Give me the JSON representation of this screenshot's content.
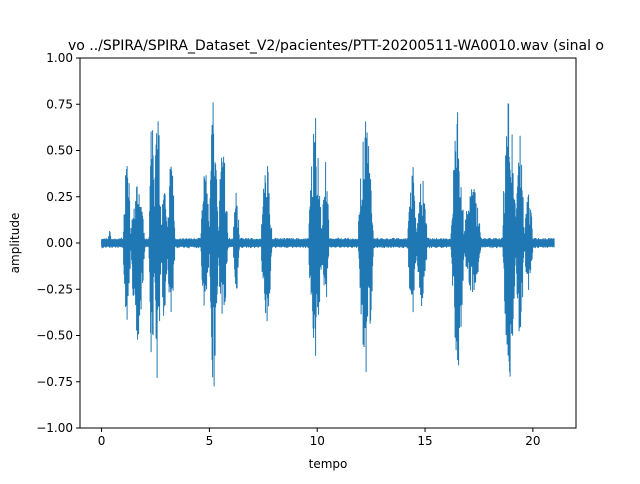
{
  "chart_data": {
    "type": "line",
    "title": "vo ../SPIRA/SPIRA_Dataset_V2/pacientes/PTT-20200511-WA0010.wav (sinal o",
    "xlabel": "tempo",
    "ylabel": "amplitude",
    "xlim": [
      -1.0,
      22.0
    ],
    "ylim": [
      -1.0,
      1.0
    ],
    "xticks": [
      0,
      5,
      10,
      15,
      20
    ],
    "xtick_labels": [
      "0",
      "5",
      "10",
      "15",
      "20"
    ],
    "yticks": [
      -1.0,
      -0.75,
      -0.5,
      -0.25,
      0.0,
      0.25,
      0.5,
      0.75,
      1.0
    ],
    "ytick_labels": [
      "−1.00",
      "−0.75",
      "−0.50",
      "−0.25",
      "0.00",
      "0.25",
      "0.50",
      "0.75",
      "1.00"
    ],
    "grid": false,
    "series": [
      {
        "color": "#1f77b4",
        "x_range": [
          0.0,
          21.0
        ],
        "noise_floor": 0.02,
        "bursts": [
          {
            "start": 0.3,
            "end": 0.45,
            "pos": 0.08,
            "neg": -0.04
          },
          {
            "start": 1.0,
            "end": 1.35,
            "pos": 0.55,
            "neg": -0.45
          },
          {
            "start": 1.35,
            "end": 2.0,
            "pos": 0.35,
            "neg": -0.55
          },
          {
            "start": 2.2,
            "end": 2.45,
            "pos": 0.88,
            "neg": -0.85
          },
          {
            "start": 2.45,
            "end": 2.75,
            "pos": 0.92,
            "neg": -0.9
          },
          {
            "start": 2.75,
            "end": 3.05,
            "pos": 0.45,
            "neg": -0.45
          },
          {
            "start": 3.05,
            "end": 3.4,
            "pos": 0.5,
            "neg": -0.48
          },
          {
            "start": 4.6,
            "end": 5.0,
            "pos": 0.45,
            "neg": -0.42
          },
          {
            "start": 5.0,
            "end": 5.4,
            "pos": 0.9,
            "neg": -0.94
          },
          {
            "start": 5.4,
            "end": 5.85,
            "pos": 0.62,
            "neg": -0.55
          },
          {
            "start": 6.1,
            "end": 6.4,
            "pos": 0.3,
            "neg": -0.3
          },
          {
            "start": 7.4,
            "end": 7.9,
            "pos": 0.5,
            "neg": -0.5
          },
          {
            "start": 9.6,
            "end": 10.2,
            "pos": 0.74,
            "neg": -0.7
          },
          {
            "start": 10.2,
            "end": 10.55,
            "pos": 0.46,
            "neg": -0.4
          },
          {
            "start": 11.9,
            "end": 12.6,
            "pos": 0.72,
            "neg": -0.78
          },
          {
            "start": 14.2,
            "end": 14.6,
            "pos": 0.5,
            "neg": -0.45
          },
          {
            "start": 14.6,
            "end": 15.1,
            "pos": 0.4,
            "neg": -0.38
          },
          {
            "start": 16.2,
            "end": 16.8,
            "pos": 0.73,
            "neg": -0.75
          },
          {
            "start": 16.8,
            "end": 17.6,
            "pos": 0.35,
            "neg": -0.3
          },
          {
            "start": 18.6,
            "end": 19.2,
            "pos": 0.95,
            "neg": -0.8
          },
          {
            "start": 19.2,
            "end": 19.6,
            "pos": 0.6,
            "neg": -0.6
          },
          {
            "start": 19.6,
            "end": 20.0,
            "pos": 0.3,
            "neg": -0.28
          }
        ]
      }
    ]
  }
}
